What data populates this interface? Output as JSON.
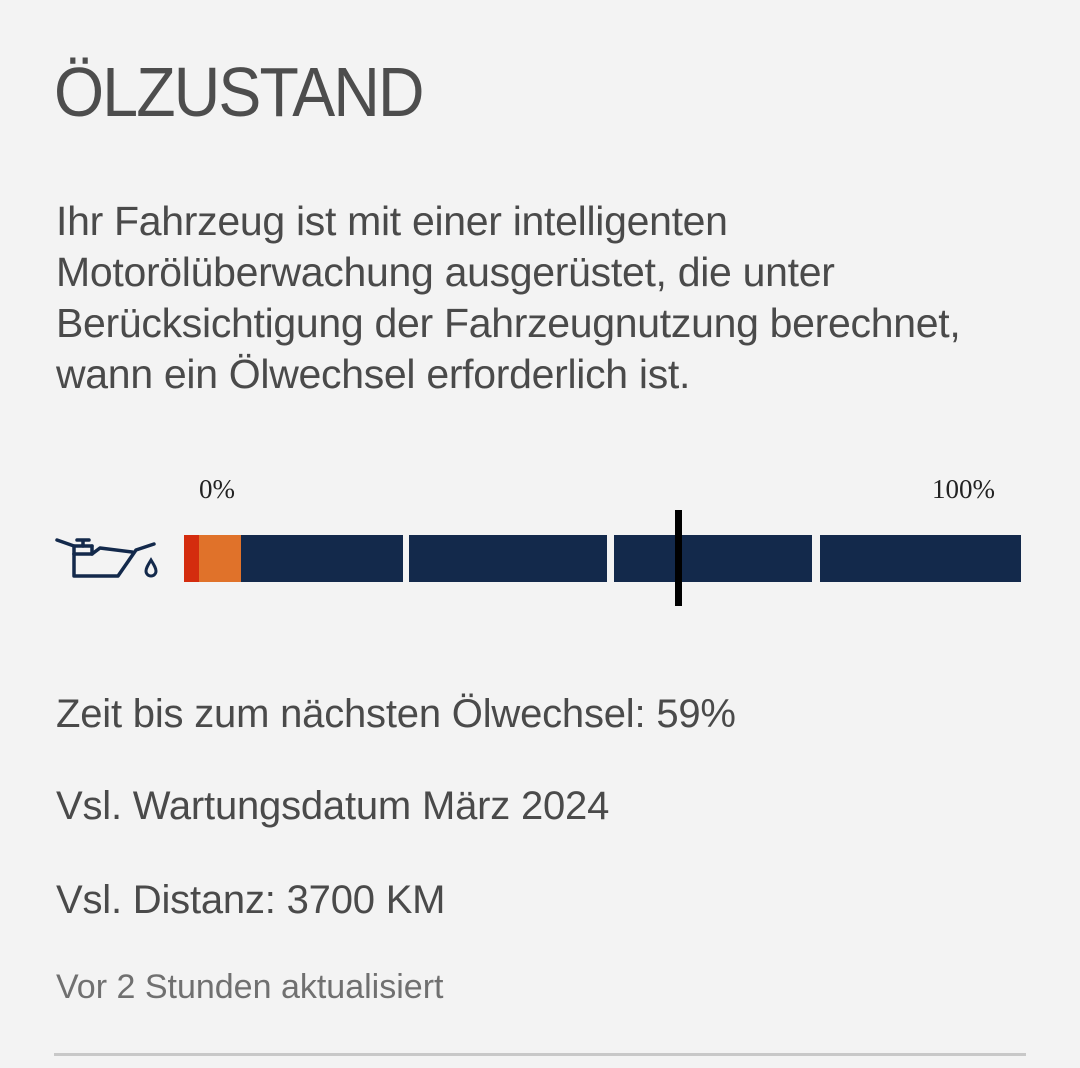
{
  "title": "ÖLZUSTAND",
  "description": "Ihr Fahrzeug ist mit einer intelligenten Motorölüberwachung ausgerüstet, die unter Berücksichtigung der Fahrzeugnutzung berechnet, wann ein Ölwechsel erforderlich ist.",
  "gauge": {
    "icon": "oil-can-icon",
    "min_label": "0%",
    "max_label": "100%",
    "value_percent": 59,
    "colors": {
      "critical": "#d42c0e",
      "warning": "#e0722a",
      "good": "#13294b",
      "marker": "#000000"
    }
  },
  "info": {
    "remaining": "Zeit bis zum nächsten Ölwechsel: 59%",
    "service_date": "Vsl. Wartungsdatum März 2024",
    "distance": "Vsl. Distanz: 3700 KM"
  },
  "updated": "Vor 2 Stunden aktualisiert"
}
